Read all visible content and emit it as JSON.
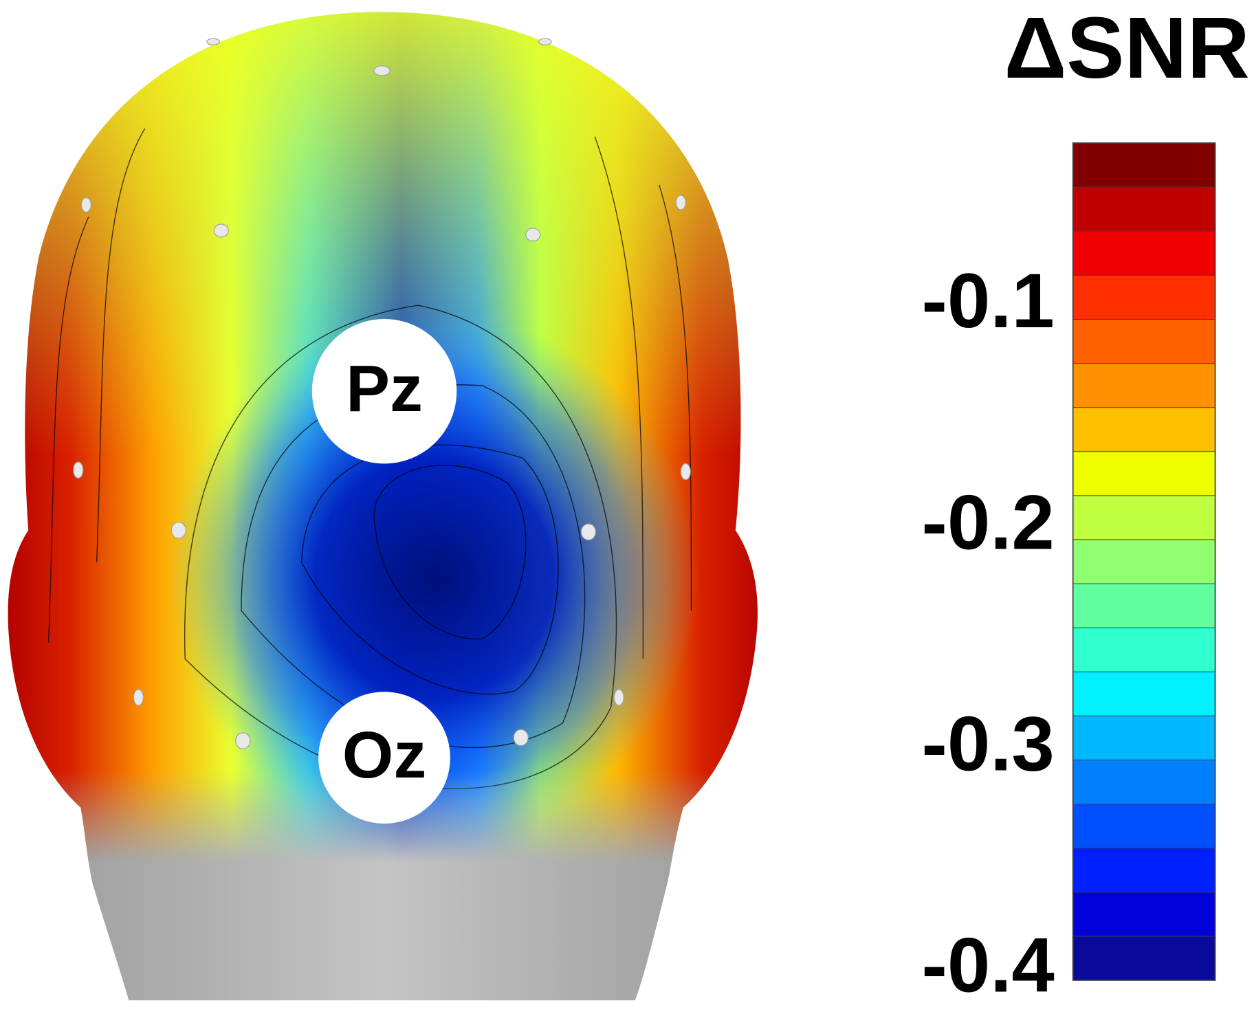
{
  "chart_data": {
    "type": "topomap",
    "title": "ΔSNR",
    "annotations": [
      "Pz",
      "Oz"
    ],
    "clim": [
      -0.404,
      -0.026
    ],
    "ticks": [
      -0.1,
      -0.2,
      -0.3,
      -0.4
    ],
    "colormap": [
      "#0a0a9a",
      "#0000d8",
      "#0020ff",
      "#0050ff",
      "#0080ff",
      "#00b8ff",
      "#00f0ff",
      "#30ffd0",
      "#60ffa0",
      "#90ff70",
      "#c0ff40",
      "#f0ff00",
      "#ffc000",
      "#ff9000",
      "#ff6000",
      "#ff3000",
      "#f00000",
      "#c00000",
      "#800000"
    ]
  }
}
